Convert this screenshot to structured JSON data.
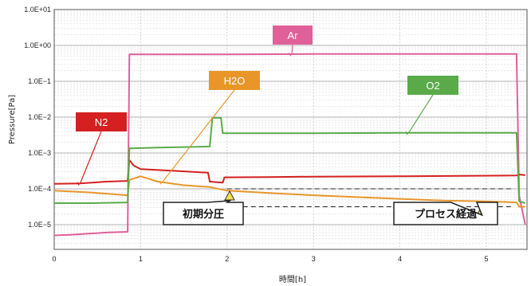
{
  "chart_data": {
    "type": "line",
    "title": "",
    "xlabel": "時間[h]",
    "ylabel": "Pressure[Pa]",
    "xlim": [
      0,
      5.45
    ],
    "ylim_log10": [
      -5.6,
      1
    ],
    "y_scale": "log",
    "grid": true,
    "x_ticks": [
      "0",
      "1",
      "2",
      "3",
      "4",
      "5"
    ],
    "y_ticks": [
      "1.0E+01",
      "1.0E+00",
      "1.0E−1",
      "1.0E−2",
      "1.0E−3",
      "1.0E−4",
      "1.0E−5"
    ],
    "series": [
      {
        "name": "Ar",
        "color": "#e0609a",
        "points": [
          [
            0,
            -5.3
          ],
          [
            0.2,
            -5.28
          ],
          [
            0.4,
            -5.25
          ],
          [
            0.6,
            -5.22
          ],
          [
            0.85,
            -5.2
          ],
          [
            0.87,
            -0.25
          ],
          [
            2.0,
            -0.25
          ],
          [
            3.0,
            -0.24
          ],
          [
            4.0,
            -0.24
          ],
          [
            5.35,
            -0.24
          ],
          [
            5.38,
            -4.2
          ],
          [
            5.45,
            -5.0
          ]
        ]
      },
      {
        "name": "N2",
        "color": "#d42020",
        "points": [
          [
            0,
            -3.86
          ],
          [
            0.3,
            -3.85
          ],
          [
            0.6,
            -3.8
          ],
          [
            0.85,
            -3.78
          ],
          [
            0.87,
            -3.2
          ],
          [
            0.92,
            -3.35
          ],
          [
            1.0,
            -3.45
          ],
          [
            1.4,
            -3.5
          ],
          [
            1.78,
            -3.55
          ],
          [
            1.8,
            -3.8
          ],
          [
            1.95,
            -3.83
          ],
          [
            1.97,
            -3.68
          ],
          [
            2.5,
            -3.67
          ],
          [
            3.0,
            -3.66
          ],
          [
            4.0,
            -3.65
          ],
          [
            5.35,
            -3.63
          ],
          [
            5.38,
            -3.6
          ],
          [
            5.45,
            -3.62
          ]
        ]
      },
      {
        "name": "H2O",
        "color": "#e8962a",
        "points": [
          [
            0,
            -4.05
          ],
          [
            0.4,
            -4.1
          ],
          [
            0.85,
            -4.18
          ],
          [
            0.87,
            -3.75
          ],
          [
            1.0,
            -3.65
          ],
          [
            1.2,
            -3.8
          ],
          [
            1.5,
            -3.9
          ],
          [
            1.8,
            -3.95
          ],
          [
            2.0,
            -4.05
          ],
          [
            2.5,
            -4.12
          ],
          [
            3.0,
            -4.18
          ],
          [
            3.5,
            -4.23
          ],
          [
            4.0,
            -4.28
          ],
          [
            4.5,
            -4.33
          ],
          [
            5.0,
            -4.35
          ],
          [
            5.35,
            -4.38
          ],
          [
            5.38,
            -4.5
          ],
          [
            5.45,
            -4.5
          ]
        ]
      },
      {
        "name": "O2",
        "color": "#5aaa4a",
        "points": [
          [
            0,
            -4.4
          ],
          [
            0.4,
            -4.4
          ],
          [
            0.85,
            -4.38
          ],
          [
            0.87,
            -2.87
          ],
          [
            1.2,
            -2.85
          ],
          [
            1.8,
            -2.82
          ],
          [
            1.83,
            -2.02
          ],
          [
            1.93,
            -2.02
          ],
          [
            1.95,
            -2.45
          ],
          [
            2.5,
            -2.45
          ],
          [
            3.0,
            -2.45
          ],
          [
            4.0,
            -2.44
          ],
          [
            5.35,
            -2.44
          ],
          [
            5.38,
            -4.35
          ],
          [
            5.45,
            -4.4
          ]
        ]
      }
    ],
    "labels": [
      {
        "text": "Ar",
        "series": "Ar",
        "color": "#e0609a"
      },
      {
        "text": "H2O",
        "series": "H2O",
        "color": "#e8962a"
      },
      {
        "text": "O2",
        "series": "O2",
        "color": "#5aaa4a"
      },
      {
        "text": "N2",
        "series": "N2",
        "color": "#d42020"
      }
    ],
    "reference_lines": [
      {
        "x": [
          2.0,
          5.3
        ],
        "y_log10": -4.0
      },
      {
        "x": [
          2.0,
          5.3
        ],
        "y_log10": -4.5
      }
    ],
    "markers": [
      {
        "x": 2.03,
        "y_log10": -4.2,
        "label": "初期分圧"
      },
      {
        "x": 4.95,
        "y_log10": -4.6,
        "label": "プロセス経過"
      }
    ]
  }
}
